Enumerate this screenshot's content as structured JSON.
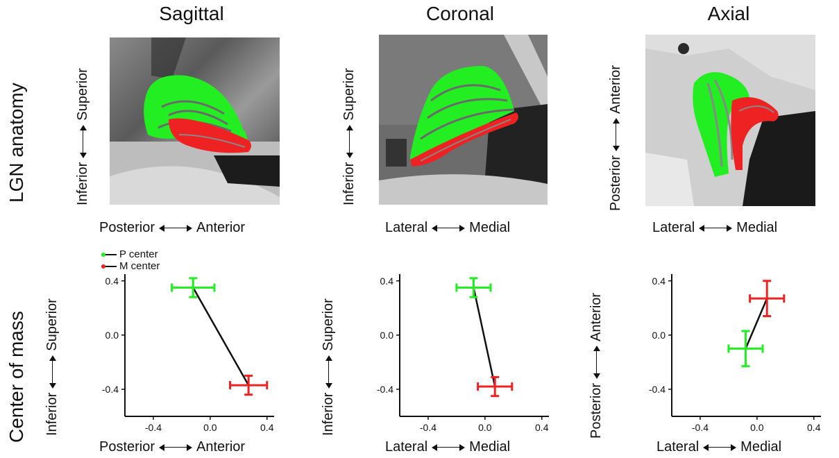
{
  "columns": [
    "Sagittal",
    "Coronal",
    "Axial"
  ],
  "rows": [
    "LGN anatomy",
    "Center of mass"
  ],
  "anatomy_labels": [
    {
      "x_left": "Posterior",
      "x_right": "Anterior",
      "y_bottom": "Inferior",
      "y_top": "Superior"
    },
    {
      "x_left": "Lateral",
      "x_right": "Medial",
      "y_bottom": "Inferior",
      "y_top": "Superior"
    },
    {
      "x_left": "Lateral",
      "x_right": "Medial",
      "y_bottom": "Posterior",
      "y_top": "Anterior"
    }
  ],
  "legend": [
    {
      "label": "P center",
      "color": "#22ee22"
    },
    {
      "label": "M center",
      "color": "#ee2222"
    }
  ],
  "colors": {
    "p": "#22ee22",
    "m": "#ee2222",
    "line": "#111111"
  },
  "chart_data": [
    {
      "type": "scatter",
      "title": "Sagittal",
      "xlabel": "Posterior ↔ Anterior",
      "ylabel": "Inferior ↔ Superior",
      "xlim": [
        -0.6,
        0.45
      ],
      "ylim": [
        -0.6,
        0.45
      ],
      "xticks": [
        -0.4,
        0.0,
        0.4
      ],
      "yticks": [
        -0.4,
        0.0,
        0.4
      ],
      "series": [
        {
          "name": "P center",
          "x": -0.12,
          "y": 0.35,
          "xerr": 0.15,
          "yerr": 0.07
        },
        {
          "name": "M center",
          "x": 0.27,
          "y": -0.37,
          "xerr": 0.13,
          "yerr": 0.07
        }
      ]
    },
    {
      "type": "scatter",
      "title": "Coronal",
      "xlabel": "Lateral ↔ Medial",
      "ylabel": "Inferior ↔ Superior",
      "xlim": [
        -0.6,
        0.45
      ],
      "ylim": [
        -0.6,
        0.45
      ],
      "xticks": [
        -0.4,
        0.0,
        0.4
      ],
      "yticks": [
        -0.4,
        0.0,
        0.4
      ],
      "series": [
        {
          "name": "P center",
          "x": -0.08,
          "y": 0.35,
          "xerr": 0.12,
          "yerr": 0.07
        },
        {
          "name": "M center",
          "x": 0.07,
          "y": -0.38,
          "xerr": 0.12,
          "yerr": 0.07
        }
      ]
    },
    {
      "type": "scatter",
      "title": "Axial",
      "xlabel": "Lateral ↔ Medial",
      "ylabel": "Posterior ↔ Anterior",
      "xlim": [
        -0.6,
        0.45
      ],
      "ylim": [
        -0.6,
        0.45
      ],
      "xticks": [
        -0.4,
        0.0,
        0.4
      ],
      "yticks": [
        -0.4,
        0.0,
        0.4
      ],
      "series": [
        {
          "name": "P center",
          "x": -0.08,
          "y": -0.1,
          "xerr": 0.12,
          "yerr": 0.13
        },
        {
          "name": "M center",
          "x": 0.07,
          "y": 0.27,
          "xerr": 0.12,
          "yerr": 0.13
        }
      ]
    }
  ]
}
